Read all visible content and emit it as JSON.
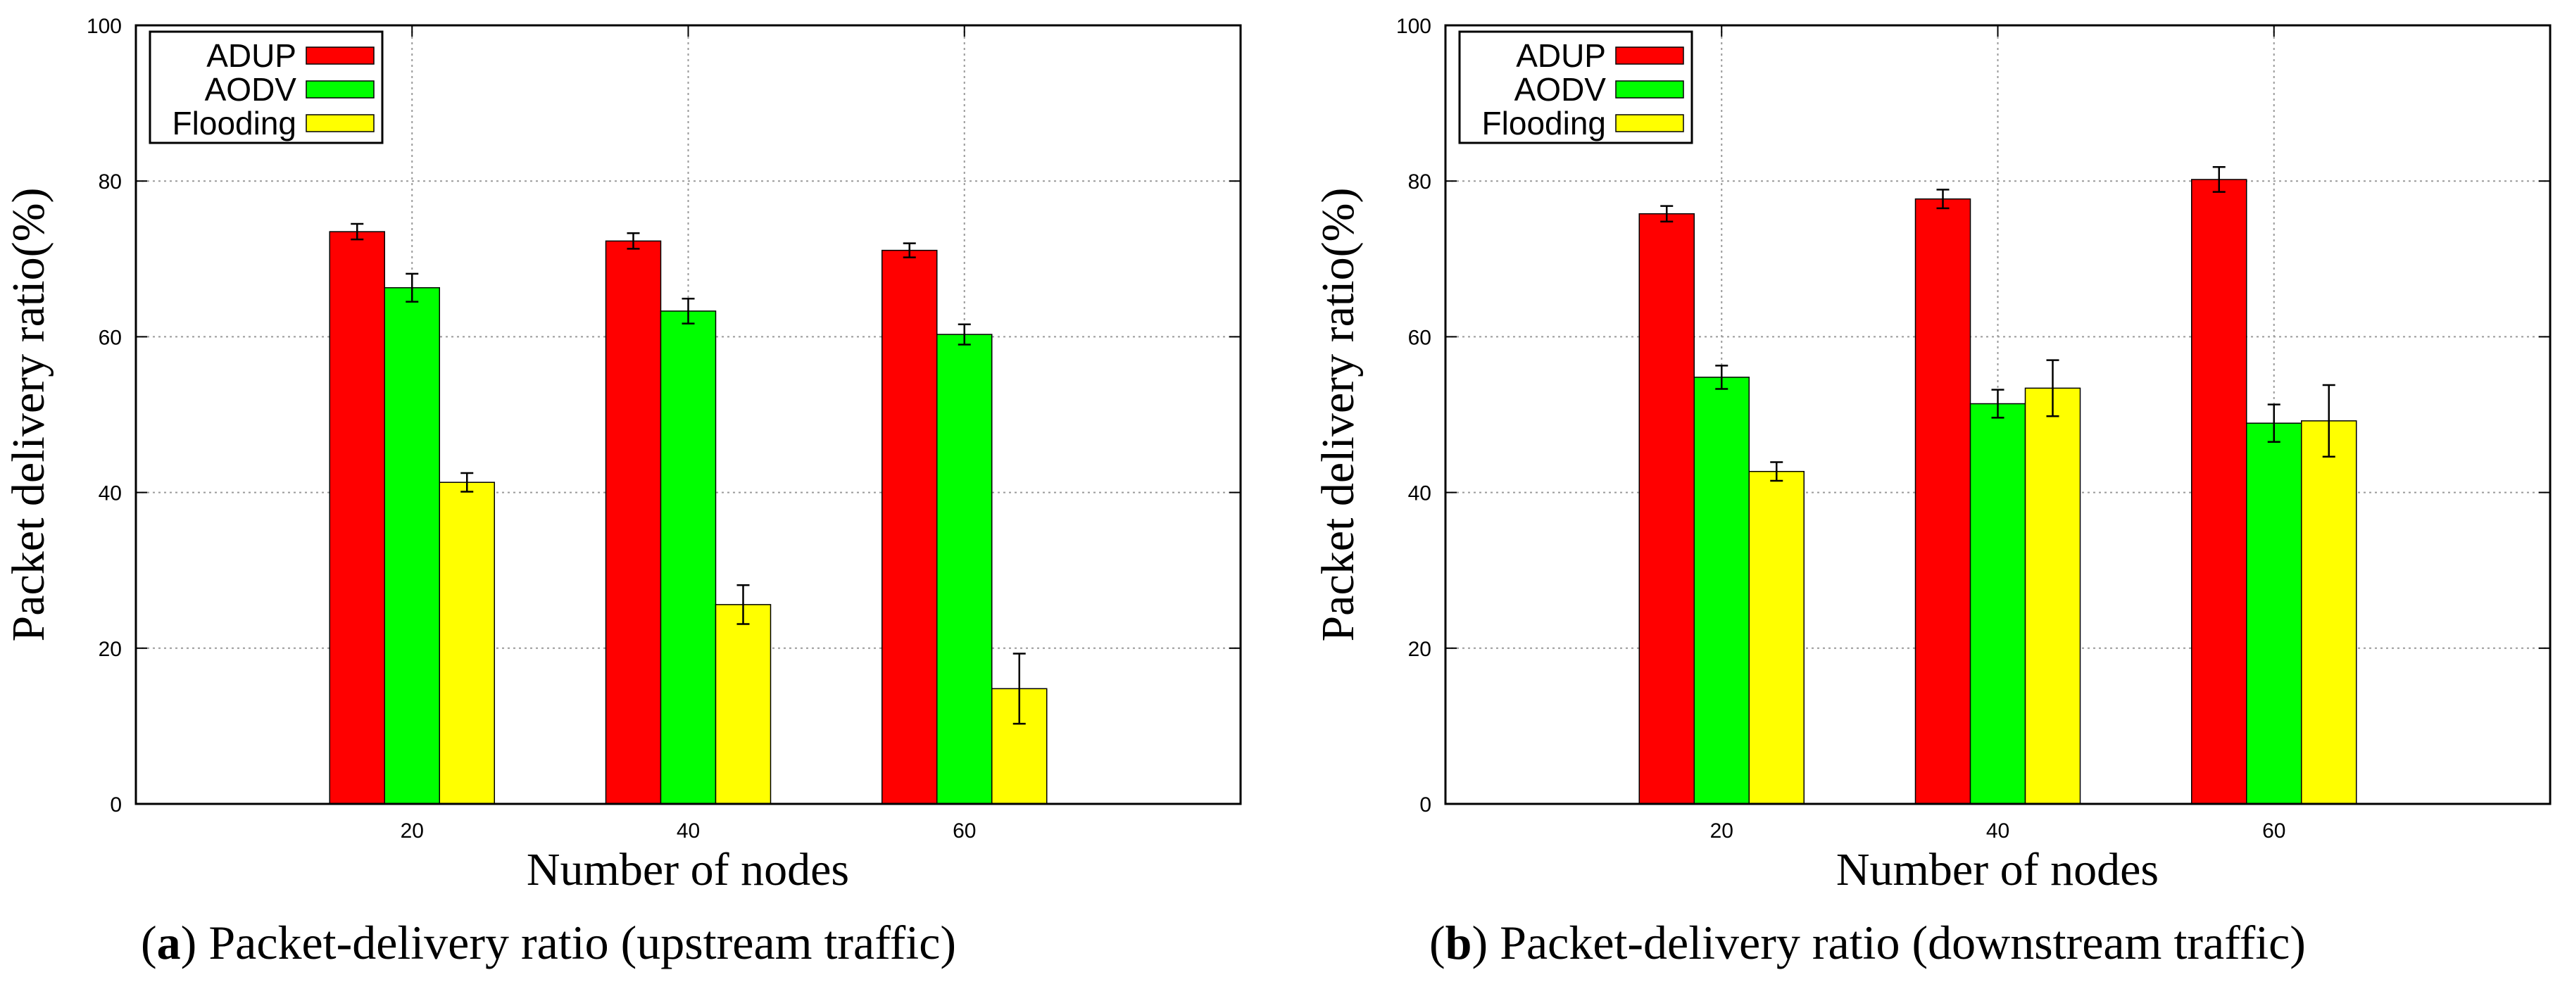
{
  "captions": [
    {
      "letter": "a",
      "text": "Packet-delivery ratio (upstream traffic)"
    },
    {
      "letter": "b",
      "text": "Packet-delivery ratio (downstream traffic)"
    }
  ],
  "chart_data": [
    {
      "type": "bar",
      "title": "",
      "xlabel": "Number of nodes",
      "ylabel": "Packet delivery ratio(%)",
      "categories": [
        "20",
        "40",
        "60"
      ],
      "ylim": [
        0,
        100
      ],
      "yticks": [
        0,
        20,
        40,
        60,
        80,
        100
      ],
      "grid": true,
      "legend_position": "top-left",
      "series": [
        {
          "name": "ADUP",
          "color": "#ff0000",
          "values": [
            73.5,
            72.3,
            71.1
          ],
          "errors": [
            1.0,
            1.0,
            0.9
          ]
        },
        {
          "name": "AODV",
          "color": "#00ff00",
          "values": [
            66.3,
            63.3,
            60.3
          ],
          "errors": [
            1.8,
            1.6,
            1.3
          ]
        },
        {
          "name": "Flooding",
          "color": "#ffff00",
          "values": [
            41.3,
            25.6,
            14.8
          ],
          "errors": [
            1.2,
            2.5,
            4.5
          ]
        }
      ]
    },
    {
      "type": "bar",
      "title": "",
      "xlabel": "Number of nodes",
      "ylabel": "Packet delivery ratio(%)",
      "categories": [
        "20",
        "40",
        "60"
      ],
      "ylim": [
        0,
        100
      ],
      "yticks": [
        0,
        20,
        40,
        60,
        80,
        100
      ],
      "grid": true,
      "legend_position": "top-left",
      "series": [
        {
          "name": "ADUP",
          "color": "#ff0000",
          "values": [
            75.8,
            77.7,
            80.2
          ],
          "errors": [
            1.0,
            1.2,
            1.6
          ]
        },
        {
          "name": "AODV",
          "color": "#00ff00",
          "values": [
            54.8,
            51.4,
            48.9
          ],
          "errors": [
            1.5,
            1.8,
            2.4
          ]
        },
        {
          "name": "Flooding",
          "color": "#ffff00",
          "values": [
            42.7,
            53.4,
            49.2
          ],
          "errors": [
            1.2,
            3.6,
            4.6
          ]
        }
      ]
    }
  ]
}
